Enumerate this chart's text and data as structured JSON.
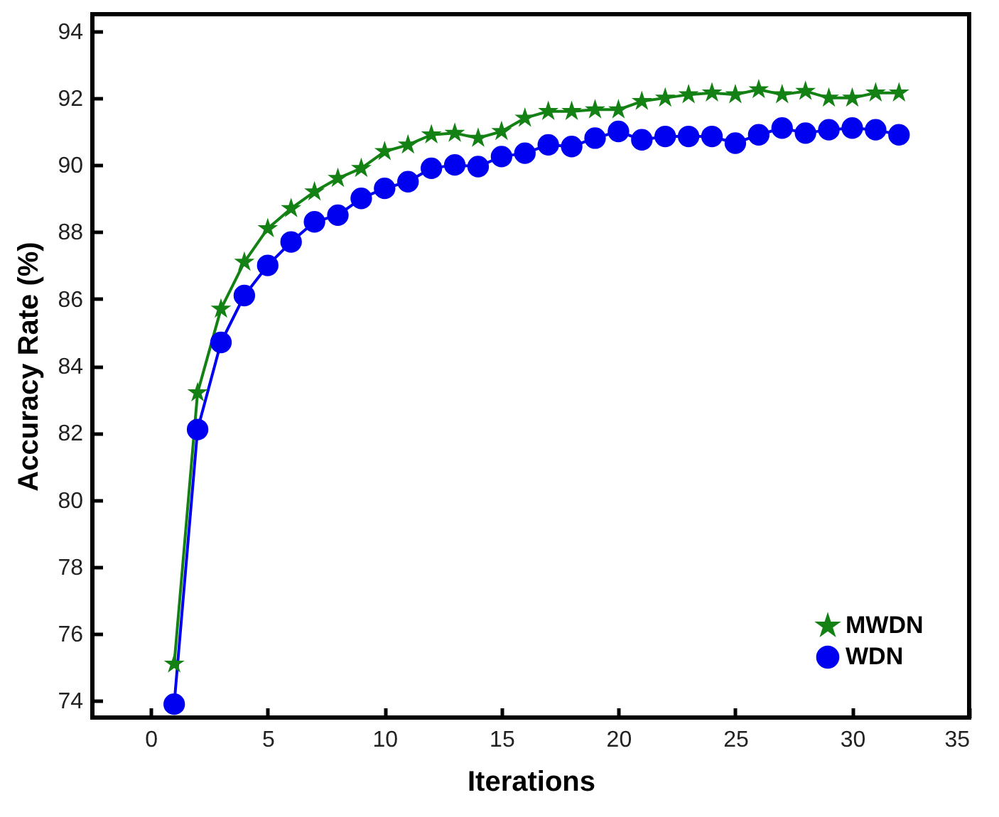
{
  "chart_data": {
    "type": "line",
    "xlabel": "Iterations",
    "ylabel": "Accuracy Rate (%)",
    "x": [
      1,
      2,
      3,
      4,
      5,
      6,
      7,
      8,
      9,
      10,
      11,
      12,
      13,
      14,
      15,
      16,
      17,
      18,
      19,
      20,
      21,
      22,
      23,
      24,
      25,
      26,
      27,
      28,
      29,
      30,
      31,
      32
    ],
    "series": [
      {
        "name": "MWDN",
        "color": "#138113",
        "marker": "star",
        "values": [
          75.1,
          83.2,
          85.7,
          87.1,
          88.1,
          88.7,
          89.2,
          89.6,
          89.9,
          90.4,
          90.6,
          90.9,
          90.95,
          90.8,
          91.0,
          91.4,
          91.6,
          91.6,
          91.65,
          91.65,
          91.9,
          92.0,
          92.1,
          92.15,
          92.1,
          92.25,
          92.1,
          92.2,
          92.0,
          92.0,
          92.15,
          92.15
        ]
      },
      {
        "name": "WDN",
        "color": "#0000f0",
        "marker": "circle",
        "values": [
          73.9,
          82.1,
          84.7,
          86.1,
          87.0,
          87.7,
          88.3,
          88.5,
          89.0,
          89.3,
          89.5,
          89.9,
          90.0,
          89.95,
          90.25,
          90.35,
          90.6,
          90.55,
          90.8,
          91.0,
          90.75,
          90.85,
          90.85,
          90.85,
          90.65,
          90.9,
          91.1,
          90.95,
          91.05,
          91.1,
          91.05,
          90.9
        ]
      }
    ],
    "xlim": [
      -2.5,
      35
    ],
    "xticks": [
      0,
      5,
      10,
      15,
      20,
      25,
      30,
      35
    ],
    "ylim": [
      73.5,
      94.5
    ],
    "yticks": [
      74,
      76,
      78,
      80,
      82,
      84,
      86,
      88,
      90,
      92,
      94
    ],
    "grid": false,
    "legend": "bottom right",
    "line_style": "solid"
  }
}
